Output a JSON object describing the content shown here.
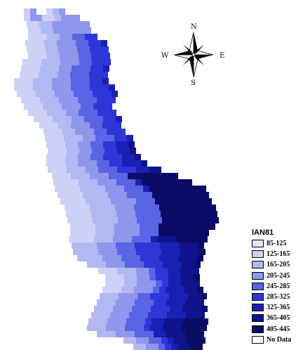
{
  "compass": {
    "north": "N",
    "south": "S",
    "east": "E",
    "west": "W"
  },
  "legend": {
    "title": "IAN81",
    "classes": [
      {
        "label": "85-125",
        "color": "#e4e6fa"
      },
      {
        "label": "125-165",
        "color": "#cdd1f5"
      },
      {
        "label": "165-205",
        "color": "#b2b8f1"
      },
      {
        "label": "205-245",
        "color": "#8f97ec"
      },
      {
        "label": "245-285",
        "color": "#5b64e4"
      },
      {
        "label": "285-325",
        "color": "#2e36d8"
      },
      {
        "label": "325-365",
        "color": "#1a20b4"
      },
      {
        "label": "365-405",
        "color": "#10138c"
      },
      {
        "label": "405-445",
        "color": "#0a0c66"
      },
      {
        "label": "No Data",
        "color": "#ffffff"
      }
    ]
  }
}
